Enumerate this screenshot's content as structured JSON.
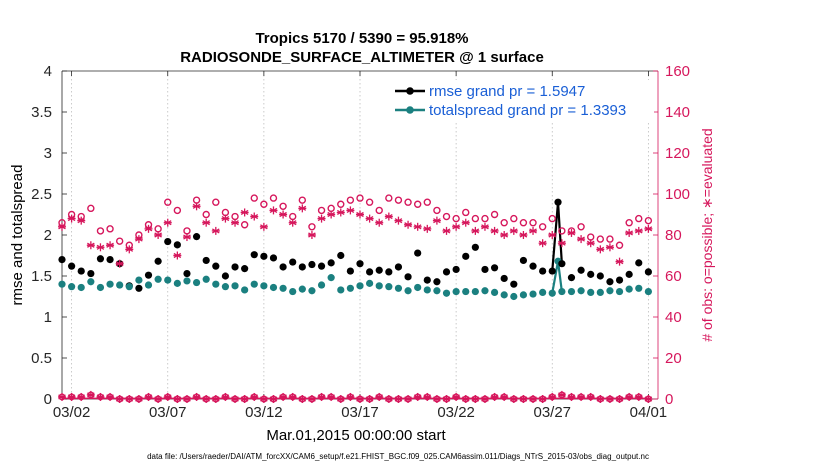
{
  "chart_data": {
    "type": "line",
    "title_line1": "Tropics 5170 / 5390 = 95.918%",
    "title_line2": "RADIOSONDE_SURFACE_ALTIMETER @ 1 surface",
    "ylabel_left": "rmse and totalspread",
    "ylabel_right": "# of obs: o=possible; ∗=evaluated",
    "xlabel": "Mar.01,2015 00:00:00 start",
    "footer": "data file: /Users/raeder/DAI/ATM_forcXX/CAM6_setup/f.e21.FHIST_BGC.f09_025.CAM6assim.011/Diags_NTrS_2015-03/obs_diag_output.nc",
    "xlim": [
      0.5,
      31.5
    ],
    "ylim_left": [
      0,
      4
    ],
    "ylim_right": [
      0,
      160
    ],
    "yticks_left": [
      "0",
      "0.5",
      "1",
      "1.5",
      "2",
      "2.5",
      "3",
      "3.5",
      "4"
    ],
    "yticks_left_values": [
      0,
      0.5,
      1,
      1.5,
      2,
      2.5,
      3,
      3.5,
      4
    ],
    "yticks_right": [
      "0",
      "20",
      "40",
      "60",
      "80",
      "100",
      "120",
      "140",
      "160"
    ],
    "yticks_right_values": [
      0,
      20,
      40,
      60,
      80,
      100,
      120,
      140,
      160
    ],
    "xticks": [
      "03/02",
      "03/07",
      "03/12",
      "03/17",
      "03/22",
      "03/27",
      "04/01"
    ],
    "xtick_values": [
      1,
      6,
      11,
      16,
      21,
      26,
      31
    ],
    "legend": {
      "position": "top-right",
      "entries": [
        "rmse grand pr = 1.5947",
        "totalspread grand pr = 1.3393"
      ]
    },
    "colors": {
      "rmse": "#000000",
      "spread": "#1b8080",
      "obs": "#d6175c",
      "legend_text": "#1a5fd6"
    },
    "series": [
      {
        "name": "rmse",
        "axis": "left",
        "x": [
          0.5,
          1,
          1.5,
          2,
          2.5,
          3,
          3.5,
          4,
          4.5,
          5,
          5.5,
          6,
          6.5,
          7,
          7.5,
          8,
          8.5,
          9,
          9.5,
          10,
          10.5,
          11,
          11.5,
          12,
          12.5,
          13,
          13.5,
          14,
          14.5,
          15,
          15.5,
          16,
          16.5,
          17,
          17.5,
          18,
          18.5,
          19,
          19.5,
          20,
          20.5,
          21,
          21.5,
          22,
          22.5,
          23,
          23.5,
          24,
          24.5,
          25,
          25.5,
          26,
          26.5,
          27,
          27.5,
          28,
          28.5,
          29,
          29.5,
          30,
          30.5,
          31
        ],
        "values": [
          1.7,
          1.62,
          1.56,
          1.53,
          1.71,
          1.7,
          1.65,
          1.38,
          1.35,
          1.51,
          1.68,
          1.92,
          1.88,
          1.53,
          1.98,
          1.69,
          1.62,
          1.5,
          1.61,
          1.59,
          1.76,
          1.74,
          1.72,
          1.61,
          1.67,
          1.61,
          1.64,
          1.62,
          1.66,
          1.75,
          1.56,
          1.65,
          1.55,
          1.57,
          1.55,
          1.61,
          1.49,
          1.78,
          1.45,
          1.43,
          1.55,
          1.58,
          1.74,
          1.85,
          1.58,
          1.6,
          1.47,
          1.4,
          1.69,
          1.62,
          1.56,
          1.56,
          1.65,
          1.48,
          1.57,
          1.52,
          1.5,
          1.43,
          1.45,
          1.52,
          1.66,
          1.55
        ],
        "x_spike": 26.3,
        "value_spike": 2.4
      },
      {
        "name": "totalspread",
        "axis": "left",
        "x": [
          0.5,
          1,
          1.5,
          2,
          2.5,
          3,
          3.5,
          4,
          4.5,
          5,
          5.5,
          6,
          6.5,
          7,
          7.5,
          8,
          8.5,
          9,
          9.5,
          10,
          10.5,
          11,
          11.5,
          12,
          12.5,
          13,
          13.5,
          14,
          14.5,
          15,
          15.5,
          16,
          16.5,
          17,
          17.5,
          18,
          18.5,
          19,
          19.5,
          20,
          20.5,
          21,
          21.5,
          22,
          22.5,
          23,
          23.5,
          24,
          24.5,
          25,
          25.5,
          26,
          26.5,
          27,
          27.5,
          28,
          28.5,
          29,
          29.5,
          30,
          30.5,
          31
        ],
        "values": [
          1.4,
          1.37,
          1.36,
          1.43,
          1.36,
          1.4,
          1.39,
          1.37,
          1.45,
          1.39,
          1.46,
          1.45,
          1.41,
          1.44,
          1.42,
          1.46,
          1.4,
          1.37,
          1.38,
          1.33,
          1.4,
          1.38,
          1.36,
          1.35,
          1.31,
          1.34,
          1.32,
          1.39,
          1.48,
          1.33,
          1.35,
          1.38,
          1.41,
          1.38,
          1.37,
          1.35,
          1.32,
          1.36,
          1.33,
          1.32,
          1.29,
          1.31,
          1.31,
          1.31,
          1.32,
          1.3,
          1.27,
          1.25,
          1.27,
          1.28,
          1.3,
          1.29,
          1.31,
          1.31,
          1.32,
          1.3,
          1.3,
          1.32,
          1.31,
          1.34,
          1.35,
          1.31
        ],
        "x_spike": 26.3,
        "value_spike": 1.68
      },
      {
        "name": "obs possible",
        "axis": "right",
        "x": [
          0.5,
          1,
          1.5,
          2,
          2.5,
          3,
          3.5,
          4,
          4.5,
          5,
          5.5,
          6,
          6.5,
          7,
          7.5,
          8,
          8.5,
          9,
          9.5,
          10,
          10.5,
          11,
          11.5,
          12,
          12.5,
          13,
          13.5,
          14,
          14.5,
          15,
          15.5,
          16,
          16.5,
          17,
          17.5,
          18,
          18.5,
          19,
          19.5,
          20,
          20.5,
          21,
          21.5,
          22,
          22.5,
          23,
          23.5,
          24,
          24.5,
          25,
          25.5,
          26,
          26.5,
          27,
          27.5,
          28,
          28.5,
          29,
          29.5,
          30,
          30.5,
          31
        ],
        "values": [
          86,
          90,
          89,
          93,
          82,
          83,
          77,
          75,
          80,
          85,
          83,
          96,
          92,
          82,
          97,
          90,
          96,
          91,
          89,
          85,
          98,
          95,
          98,
          94,
          89,
          97,
          84,
          92,
          93,
          95,
          97,
          98,
          96,
          92,
          98,
          97,
          96,
          95,
          96,
          92,
          89,
          88,
          91,
          88,
          88,
          90,
          86,
          88,
          86,
          86,
          84,
          88,
          82,
          82,
          84,
          79,
          78,
          78,
          75,
          86,
          88,
          87
        ]
      },
      {
        "name": "obs evaluated",
        "axis": "right",
        "x": [
          0.5,
          1,
          1.5,
          2,
          2.5,
          3,
          3.5,
          4,
          4.5,
          5,
          5.5,
          6,
          6.5,
          7,
          7.5,
          8,
          8.5,
          9,
          9.5,
          10,
          10.5,
          11,
          11.5,
          12,
          12.5,
          13,
          13.5,
          14,
          14.5,
          15,
          15.5,
          16,
          16.5,
          17,
          17.5,
          18,
          18.5,
          19,
          19.5,
          20,
          20.5,
          21,
          21.5,
          22,
          22.5,
          23,
          23.5,
          24,
          24.5,
          25,
          25.5,
          26,
          26.5,
          27,
          27.5,
          28,
          28.5,
          29,
          29.5,
          30,
          30.5,
          31
        ],
        "values": [
          84,
          88,
          87,
          75,
          74,
          75,
          66,
          73,
          78,
          83,
          80,
          86,
          70,
          79,
          94,
          86,
          82,
          88,
          86,
          91,
          89,
          84,
          92,
          90,
          86,
          93,
          80,
          88,
          90,
          91,
          92,
          90,
          88,
          86,
          89,
          87,
          85,
          84,
          83,
          87,
          82,
          84,
          86,
          82,
          84,
          82,
          80,
          82,
          80,
          82,
          76,
          80,
          76,
          81,
          78,
          76,
          73,
          74,
          67,
          81,
          82,
          83
        ]
      },
      {
        "name": "obs zero possible",
        "axis": "right",
        "x": [
          0.5,
          1,
          1.5,
          2,
          2.5,
          3,
          3.5,
          4,
          4.5,
          5,
          5.5,
          6,
          6.5,
          7,
          7.5,
          8,
          8.5,
          9,
          9.5,
          10,
          10.5,
          11,
          11.5,
          12,
          12.5,
          13,
          13.5,
          14,
          14.5,
          15,
          15.5,
          16,
          16.5,
          17,
          17.5,
          18,
          18.5,
          19,
          19.5,
          20,
          20.5,
          21,
          21.5,
          22,
          22.5,
          23,
          23.5,
          24,
          24.5,
          25,
          25.5,
          26,
          26.5,
          27,
          27.5,
          28,
          28.5,
          29,
          29.5,
          30,
          30.5,
          31
        ],
        "values": [
          1,
          1,
          1,
          2,
          1,
          1,
          0,
          0,
          0,
          1,
          0,
          1,
          0,
          0,
          1,
          0,
          0,
          1,
          0,
          0,
          1,
          0,
          0,
          1,
          1,
          0,
          0,
          1,
          1,
          0,
          1,
          0,
          0,
          1,
          0,
          0,
          0,
          1,
          1,
          0,
          0,
          1,
          0,
          0,
          0,
          1,
          1,
          0,
          0,
          0,
          0,
          1,
          2,
          1,
          1,
          1,
          0,
          0,
          0,
          1,
          1,
          0
        ]
      }
    ]
  }
}
